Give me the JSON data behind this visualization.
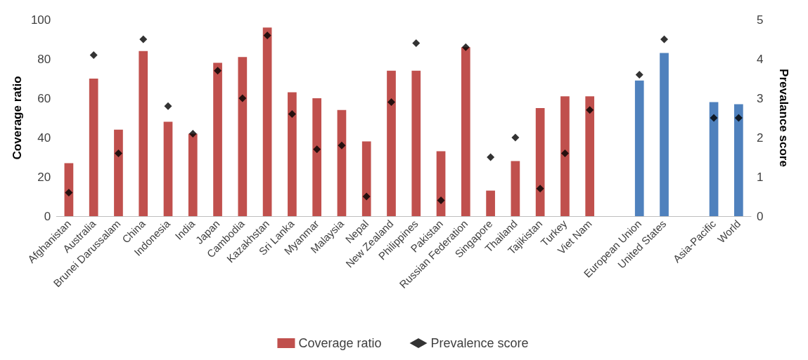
{
  "chart_data": {
    "type": "bar",
    "ylabel": "Coverage ratio",
    "y2label": "Prevalance score",
    "categories": [
      "Afghanistan",
      "Australia",
      "Brunei Darussalam",
      "China",
      "Indonesia",
      "India",
      "Japan",
      "Cambodia",
      "Kazakhstan",
      "Sri Lanka",
      "Myanmar",
      "Malaysia",
      "Nepal",
      "New Zealand",
      "Philippines",
      "Pakistan",
      "Russian Federation",
      "Singapore",
      "Thailand",
      "Tajikistan",
      "Turkey",
      "Viet Nam",
      null,
      "European Union",
      "United States",
      null,
      "Asia-Pacific",
      "World"
    ],
    "series": [
      {
        "name": "Coverage ratio",
        "color": "#c0504d",
        "colors": [
          "#c0504d",
          "#c0504d",
          "#c0504d",
          "#c0504d",
          "#c0504d",
          "#c0504d",
          "#c0504d",
          "#c0504d",
          "#c0504d",
          "#c0504d",
          "#c0504d",
          "#c0504d",
          "#c0504d",
          "#c0504d",
          "#c0504d",
          "#c0504d",
          "#c0504d",
          "#c0504d",
          "#c0504d",
          "#c0504d",
          "#c0504d",
          "#c0504d",
          "#c0504d",
          "#4f81bd",
          "#4f81bd",
          "#4f81bd",
          "#4f81bd",
          "#4f81bd"
        ],
        "values": [
          27,
          70,
          44,
          84,
          48,
          42,
          78,
          81,
          96,
          63,
          60,
          54,
          38,
          74,
          74,
          33,
          86,
          13,
          28,
          55,
          61,
          61,
          null,
          69,
          83,
          null,
          58,
          57
        ]
      },
      {
        "name": "Prevalence score",
        "type": "scatter",
        "axis": "y2",
        "color": "#000000",
        "values": [
          0.6,
          4.1,
          1.6,
          4.5,
          2.8,
          2.1,
          3.7,
          3.0,
          4.6,
          2.6,
          1.7,
          1.8,
          0.5,
          2.9,
          4.4,
          0.4,
          4.3,
          1.5,
          2.0,
          0.7,
          1.6,
          2.7,
          null,
          3.6,
          4.5,
          null,
          2.5,
          2.5
        ]
      }
    ],
    "ylim": [
      0,
      100
    ],
    "yticks": [
      0,
      20,
      40,
      60,
      80,
      100
    ],
    "y2lim": [
      0,
      5
    ],
    "y2ticks": [
      0,
      1,
      2,
      3,
      4,
      5
    ],
    "marker": "diamond",
    "legend": "bottom",
    "grid": false
  }
}
